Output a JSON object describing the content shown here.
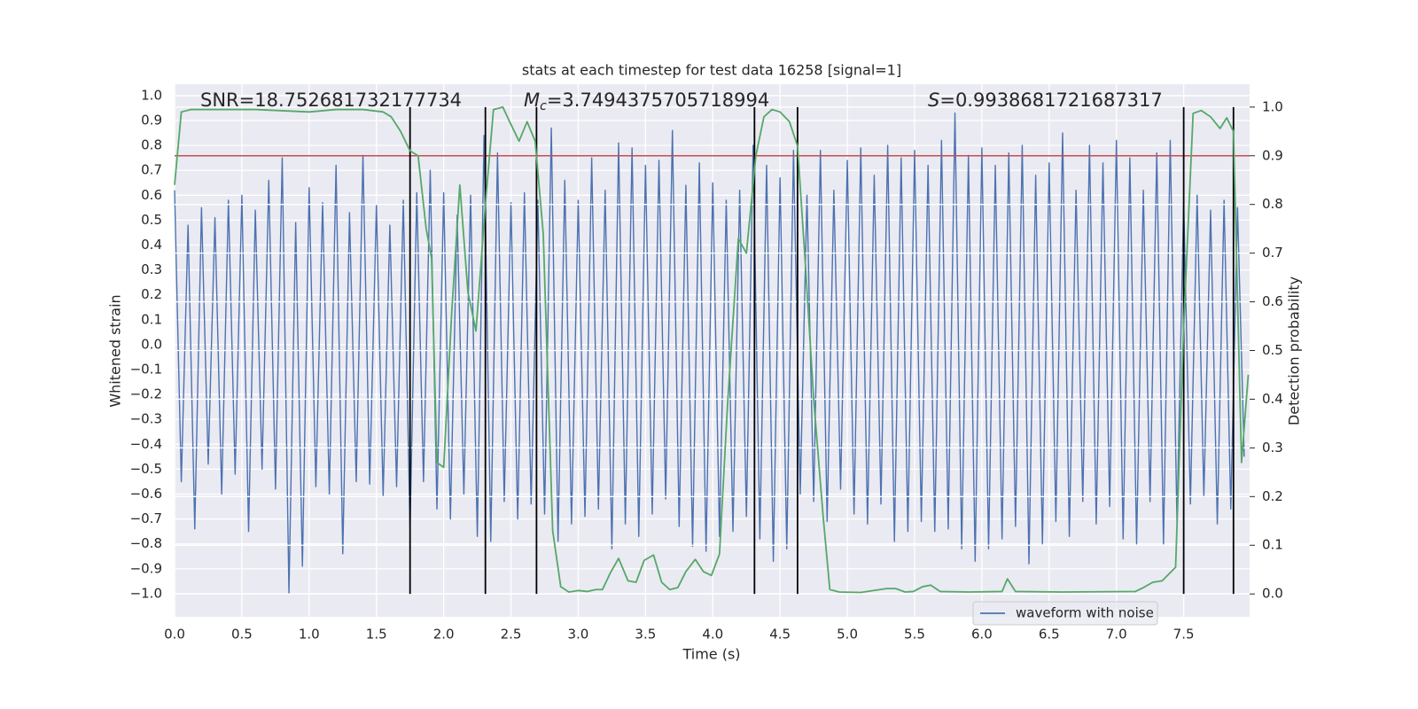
{
  "chart_data": {
    "type": "line",
    "title": "stats at each timestep for test data 16258 [signal=1]",
    "x_label": "Time (s)",
    "y_label": "Whitened strain",
    "y2_label": "Detection probability",
    "annotations": [
      {
        "text": "SNR=18.752681732177734"
      },
      {
        "symbol": "M",
        "subscript": "c",
        "text": "=3.7494375705718994"
      },
      {
        "symbol": "S",
        "text": "=0.9938681721687317"
      }
    ],
    "xlim": [
      0,
      7.99
    ],
    "ylim": [
      -1.093,
      1.046
    ],
    "y2lim": [
      -0.047,
      1.047
    ],
    "xticks": [
      {
        "value": 0,
        "label": "0.0"
      },
      {
        "value": 0.5,
        "label": "0.5"
      },
      {
        "value": 1,
        "label": "1.0"
      },
      {
        "value": 1.5,
        "label": "1.5"
      },
      {
        "value": 2,
        "label": "2.0"
      },
      {
        "value": 2.5,
        "label": "2.5"
      },
      {
        "value": 3,
        "label": "3.0"
      },
      {
        "value": 3.5,
        "label": "3.5"
      },
      {
        "value": 4,
        "label": "4.0"
      },
      {
        "value": 4.5,
        "label": "4.5"
      },
      {
        "value": 5,
        "label": "5.0"
      },
      {
        "value": 5.5,
        "label": "5.5"
      },
      {
        "value": 6,
        "label": "6.0"
      },
      {
        "value": 6.5,
        "label": "6.5"
      },
      {
        "value": 7,
        "label": "7.0"
      },
      {
        "value": 7.5,
        "label": "7.5"
      }
    ],
    "yticks": [
      {
        "value": -1,
        "label": "−1.0"
      },
      {
        "value": -0.9,
        "label": "−0.9"
      },
      {
        "value": -0.8,
        "label": "−0.8"
      },
      {
        "value": -0.7,
        "label": "−0.7"
      },
      {
        "value": -0.6,
        "label": "−0.6"
      },
      {
        "value": -0.5,
        "label": "−0.5"
      },
      {
        "value": -0.4,
        "label": "−0.4"
      },
      {
        "value": -0.3,
        "label": "−0.3"
      },
      {
        "value": -0.2,
        "label": "−0.2"
      },
      {
        "value": -0.1,
        "label": "−0.1"
      },
      {
        "value": 0,
        "label": "0.0"
      },
      {
        "value": 0.1,
        "label": "0.1"
      },
      {
        "value": 0.2,
        "label": "0.2"
      },
      {
        "value": 0.3,
        "label": "0.3"
      },
      {
        "value": 0.4,
        "label": "0.4"
      },
      {
        "value": 0.5,
        "label": "0.5"
      },
      {
        "value": 0.6,
        "label": "0.6"
      },
      {
        "value": 0.7,
        "label": "0.7"
      },
      {
        "value": 0.8,
        "label": "0.8"
      },
      {
        "value": 0.9,
        "label": "0.9"
      },
      {
        "value": 1,
        "label": "1.0"
      }
    ],
    "y2ticks": [
      {
        "value": 0,
        "label": "0.0"
      },
      {
        "value": 0.1,
        "label": "0.1"
      },
      {
        "value": 0.2,
        "label": "0.2"
      },
      {
        "value": 0.3,
        "label": "0.3"
      },
      {
        "value": 0.4,
        "label": "0.4"
      },
      {
        "value": 0.5,
        "label": "0.5"
      },
      {
        "value": 0.6,
        "label": "0.6"
      },
      {
        "value": 0.7,
        "label": "0.7"
      },
      {
        "value": 0.8,
        "label": "0.8"
      },
      {
        "value": 0.9,
        "label": "0.9"
      },
      {
        "value": 1,
        "label": "1.0"
      }
    ],
    "grid": true,
    "legend": "lower right",
    "threshold": 0.9,
    "threshold_color": "#c44e52",
    "vlines": [
      1.75,
      2.31,
      2.69,
      4.31,
      4.63,
      7.5,
      7.87
    ],
    "vline_color": "#000000",
    "series": [
      {
        "name": "waveform with noise",
        "color": "#4c72b0",
        "x": [
          0,
          0.05,
          0.1,
          0.15,
          0.2,
          0.25,
          0.3,
          0.35,
          0.4,
          0.45,
          0.5,
          0.55,
          0.6,
          0.65,
          0.7,
          0.75,
          0.8,
          0.85,
          0.9,
          0.95,
          1,
          1.05,
          1.1,
          1.15,
          1.2,
          1.25,
          1.3,
          1.35,
          1.4,
          1.45,
          1.5,
          1.55,
          1.6,
          1.65,
          1.7,
          1.75,
          1.8,
          1.85,
          1.9,
          1.95,
          2,
          2.05,
          2.1,
          2.15,
          2.2,
          2.25,
          2.3,
          2.35,
          2.4,
          2.45,
          2.5,
          2.55,
          2.6,
          2.65,
          2.7,
          2.75,
          2.8,
          2.85,
          2.9,
          2.95,
          3,
          3.05,
          3.1,
          3.15,
          3.2,
          3.25,
          3.3,
          3.35,
          3.4,
          3.45,
          3.5,
          3.55,
          3.6,
          3.65,
          3.7,
          3.75,
          3.8,
          3.85,
          3.9,
          3.95,
          4,
          4.05,
          4.1,
          4.15,
          4.2,
          4.25,
          4.3,
          4.35,
          4.4,
          4.45,
          4.5,
          4.55,
          4.6,
          4.65,
          4.7,
          4.75,
          4.8,
          4.85,
          4.9,
          4.95,
          5,
          5.05,
          5.1,
          5.15,
          5.2,
          5.25,
          5.3,
          5.35,
          5.4,
          5.45,
          5.5,
          5.55,
          5.6,
          5.65,
          5.7,
          5.75,
          5.8,
          5.85,
          5.9,
          5.95,
          6,
          6.05,
          6.1,
          6.15,
          6.2,
          6.25,
          6.3,
          6.35,
          6.4,
          6.45,
          6.5,
          6.55,
          6.6,
          6.65,
          6.7,
          6.75,
          6.8,
          6.85,
          6.9,
          6.95,
          7,
          7.05,
          7.1,
          7.15,
          7.2,
          7.25,
          7.3,
          7.35,
          7.4,
          7.45,
          7.5,
          7.55,
          7.6,
          7.65,
          7.7,
          7.75,
          7.8,
          7.85,
          7.9,
          7.95
        ],
        "values": [
          0.62,
          -0.55,
          0.48,
          -0.74,
          0.55,
          -0.48,
          0.51,
          -0.6,
          0.58,
          -0.52,
          0.6,
          -0.75,
          0.54,
          -0.5,
          0.66,
          -0.58,
          0.75,
          -1.0,
          0.49,
          -0.89,
          0.63,
          -0.57,
          0.57,
          -0.6,
          0.72,
          -0.84,
          0.53,
          -0.55,
          0.76,
          -0.56,
          0.56,
          -0.61,
          0.48,
          -0.57,
          0.58,
          -0.74,
          0.61,
          -0.55,
          0.7,
          -0.66,
          0.61,
          -0.7,
          0.52,
          -0.6,
          0.6,
          -0.77,
          0.84,
          -0.79,
          0.77,
          -0.63,
          0.57,
          -0.7,
          0.61,
          -0.64,
          0.58,
          -0.68,
          0.87,
          -0.79,
          0.66,
          -0.72,
          0.58,
          -0.69,
          0.75,
          -0.66,
          0.62,
          -0.82,
          0.81,
          -0.72,
          0.79,
          -0.77,
          0.72,
          -0.68,
          0.74,
          -0.62,
          0.86,
          -0.73,
          0.64,
          -0.81,
          0.73,
          -0.83,
          0.65,
          -0.77,
          0.58,
          -0.75,
          0.62,
          -0.69,
          0.8,
          -0.78,
          0.72,
          -0.87,
          0.67,
          -0.82,
          0.78,
          -0.6,
          0.6,
          -0.63,
          0.78,
          -0.71,
          0.62,
          -0.58,
          0.74,
          -0.68,
          0.79,
          -0.72,
          0.68,
          -0.64,
          0.8,
          -0.79,
          0.75,
          -0.75,
          0.78,
          -0.71,
          0.72,
          -0.75,
          0.82,
          -0.74,
          0.93,
          -0.82,
          0.76,
          -0.87,
          0.79,
          -0.82,
          0.72,
          -0.78,
          0.77,
          -0.73,
          0.8,
          -0.88,
          0.68,
          -0.8,
          0.73,
          -0.71,
          0.85,
          -0.77,
          0.62,
          -0.63,
          0.8,
          -0.72,
          0.73,
          -0.65,
          0.82,
          -0.78,
          0.75,
          -0.8,
          0.62,
          -0.63,
          0.77,
          -0.8,
          0.82,
          -0.71,
          0.57,
          -0.64,
          0.6,
          -0.61,
          0.54,
          -0.72,
          0.58,
          -0.66,
          0.55,
          -0.45
        ]
      },
      {
        "color": "#55a868",
        "axis": "y2",
        "x": [
          0,
          0.05,
          0.12,
          0.3,
          0.6,
          1.0,
          1.2,
          1.4,
          1.55,
          1.61,
          1.68,
          1.75,
          1.81,
          1.87,
          1.91,
          1.95,
          2.0,
          2.06,
          2.12,
          2.18,
          2.24,
          2.31,
          2.37,
          2.44,
          2.49,
          2.56,
          2.62,
          2.68,
          2.74,
          2.81,
          2.87,
          2.93,
          3.0,
          3.07,
          3.13,
          3.18,
          3.24,
          3.3,
          3.37,
          3.43,
          3.49,
          3.56,
          3.62,
          3.68,
          3.74,
          3.8,
          3.87,
          3.93,
          3.99,
          4.05,
          4.11,
          4.19,
          4.25,
          4.32,
          4.38,
          4.44,
          4.5,
          4.57,
          4.63,
          4.69,
          4.75,
          4.82,
          4.87,
          4.94,
          5.1,
          5.29,
          5.36,
          5.43,
          5.49,
          5.56,
          5.62,
          5.69,
          5.9,
          6.15,
          6.19,
          6.25,
          6.6,
          7.14,
          7.2,
          7.27,
          7.34,
          7.44,
          7.5,
          7.57,
          7.63,
          7.7,
          7.77,
          7.82,
          7.87,
          7.93,
          7.98
        ],
        "values": [
          0.84,
          0.99,
          0.995,
          0.995,
          0.995,
          0.99,
          0.995,
          0.995,
          0.99,
          0.98,
          0.95,
          0.91,
          0.9,
          0.75,
          0.69,
          0.27,
          0.26,
          0.58,
          0.84,
          0.62,
          0.54,
          0.8,
          0.995,
          1.0,
          0.97,
          0.93,
          0.97,
          0.93,
          0.74,
          0.13,
          0.015,
          0.004,
          0.007,
          0.005,
          0.009,
          0.009,
          0.044,
          0.073,
          0.027,
          0.024,
          0.069,
          0.08,
          0.024,
          0.009,
          0.013,
          0.046,
          0.071,
          0.046,
          0.038,
          0.082,
          0.39,
          0.73,
          0.7,
          0.9,
          0.98,
          0.995,
          0.99,
          0.97,
          0.92,
          0.67,
          0.4,
          0.16,
          0.009,
          0.004,
          0.003,
          0.011,
          0.011,
          0.004,
          0.005,
          0.015,
          0.018,
          0.005,
          0.004,
          0.005,
          0.031,
          0.005,
          0.004,
          0.005,
          0.013,
          0.024,
          0.027,
          0.055,
          0.55,
          0.987,
          0.993,
          0.98,
          0.956,
          0.978,
          0.95,
          0.27,
          0.45
        ]
      }
    ]
  }
}
